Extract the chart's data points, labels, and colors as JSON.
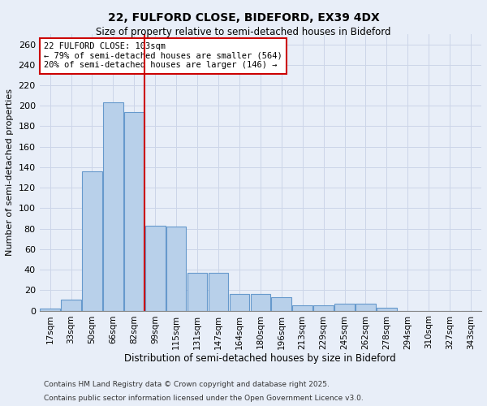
{
  "title_line1": "22, FULFORD CLOSE, BIDEFORD, EX39 4DX",
  "title_line2": "Size of property relative to semi-detached houses in Bideford",
  "xlabel": "Distribution of semi-detached houses by size in Bideford",
  "ylabel": "Number of semi-detached properties",
  "categories": [
    "17sqm",
    "33sqm",
    "50sqm",
    "66sqm",
    "82sqm",
    "99sqm",
    "115sqm",
    "131sqm",
    "147sqm",
    "164sqm",
    "180sqm",
    "196sqm",
    "213sqm",
    "229sqm",
    "245sqm",
    "262sqm",
    "278sqm",
    "294sqm",
    "310sqm",
    "327sqm",
    "343sqm"
  ],
  "values": [
    2,
    11,
    136,
    203,
    194,
    83,
    82,
    37,
    37,
    16,
    16,
    13,
    5,
    5,
    7,
    7,
    3,
    0,
    0,
    0,
    0
  ],
  "bar_color": "#b8d0ea",
  "bar_edge_color": "#6699cc",
  "vline_index": 4.5,
  "marker_label": "22 FULFORD CLOSE: 103sqm",
  "smaller_pct": "79%",
  "smaller_count": 564,
  "larger_pct": "20%",
  "larger_count": 146,
  "vline_color": "#cc0000",
  "annotation_box_color": "#cc0000",
  "grid_color": "#ccd5e8",
  "ylim": [
    0,
    270
  ],
  "yticks": [
    0,
    20,
    40,
    60,
    80,
    100,
    120,
    140,
    160,
    180,
    200,
    220,
    240,
    260
  ],
  "footnote1": "Contains HM Land Registry data © Crown copyright and database right 2025.",
  "footnote2": "Contains public sector information licensed under the Open Government Licence v3.0.",
  "bg_color": "#e8eef8"
}
